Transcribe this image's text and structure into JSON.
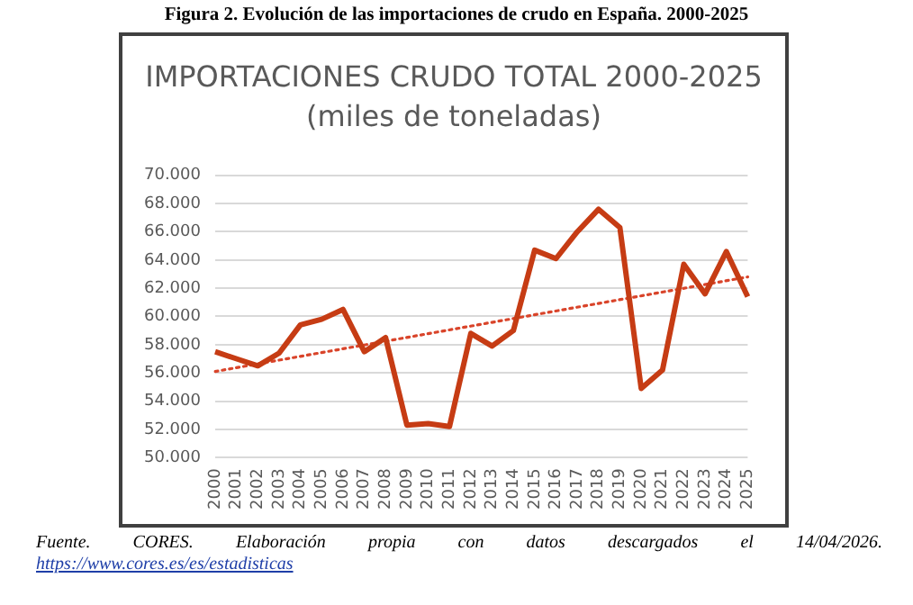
{
  "chart_data": {
    "type": "line",
    "title": "Figura 2. Evolución de las importaciones de crudo en España. 2000-2025",
    "subtitle": "IMPORTACIONES CRUDO TOTAL 2000-2025\n(miles de toneladas)",
    "categories": [
      "2000",
      "2001",
      "2002",
      "2003",
      "2004",
      "2005",
      "2006",
      "2007",
      "2008",
      "2009",
      "2010",
      "2011",
      "2012",
      "2013",
      "2014",
      "2015",
      "2016",
      "2017",
      "2018",
      "2019",
      "2020",
      "2021",
      "2022",
      "2023",
      "2024",
      "2025"
    ],
    "series": [
      {
        "color": "#c63c14",
        "values": [
          57500,
          57000,
          56500,
          57400,
          59400,
          59800,
          60500,
          57500,
          58500,
          52300,
          52400,
          52200,
          58800,
          57900,
          59000,
          64700,
          64100,
          66000,
          67600,
          66300,
          54900,
          56200,
          63700,
          61600,
          64600,
          61400
        ]
      },
      {
        "type": "line",
        "line_style": "dotted",
        "color": "#d9442a",
        "values": [
          56100,
          null,
          null,
          null,
          null,
          null,
          null,
          null,
          null,
          null,
          null,
          null,
          null,
          null,
          null,
          null,
          null,
          null,
          null,
          null,
          null,
          null,
          null,
          null,
          null,
          62800
        ]
      }
    ],
    "ylim": [
      50000,
      70000
    ],
    "yticks": [
      {
        "value": 50000,
        "label": "50.000"
      },
      {
        "value": 52000,
        "label": "52.000"
      },
      {
        "value": 54000,
        "label": "54.000"
      },
      {
        "value": 56000,
        "label": "56.000"
      },
      {
        "value": 58000,
        "label": "58.000"
      },
      {
        "value": 60000,
        "label": "60.000"
      },
      {
        "value": 62000,
        "label": "62.000"
      },
      {
        "value": 64000,
        "label": "64.000"
      },
      {
        "value": 66000,
        "label": "66.000"
      },
      {
        "value": 68000,
        "label": "68.000"
      },
      {
        "value": 70000,
        "label": "70.000"
      }
    ],
    "grid": "y",
    "legend": false,
    "marker": "none",
    "line_style": "solid",
    "annotations": [
      "Fuente. CORES. Elaboración propia con datos descargados el 14/04/2026.",
      "https://www.cores.es/es/estadisticas"
    ]
  }
}
